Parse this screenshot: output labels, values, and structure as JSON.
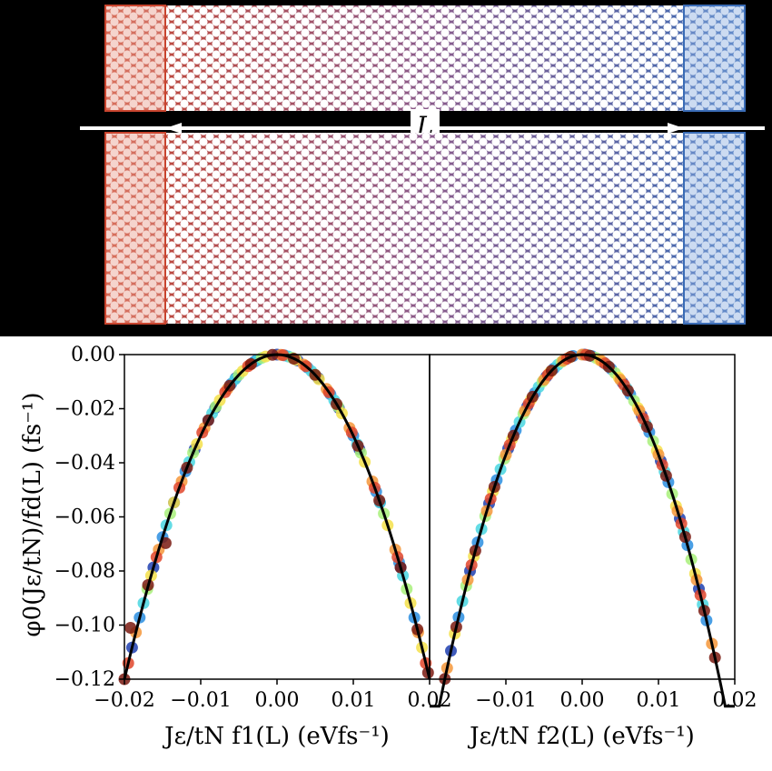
{
  "schematic": {
    "length_label": "L",
    "colors": {
      "hot": "#c8442e",
      "cold": "#3a6cb6",
      "mid": "#8a5a8a",
      "background": "#000000"
    }
  },
  "chart_data": [
    {
      "type": "scatter",
      "panel": "left",
      "ylabel": "φ0(Jε/tN)/fd(L) (fs⁻¹)",
      "xlabel": "Jε/tN f1(L) (eVfs⁻¹)",
      "xlim": [
        -0.02,
        0.02
      ],
      "ylim": [
        -0.12,
        0.0
      ],
      "xticks": [
        "−0.02",
        "−0.01",
        "0.00",
        "0.01",
        "0.02"
      ],
      "yticks": [
        "0.00",
        "−0.02",
        "−0.04",
        "−0.06",
        "−0.08",
        "−0.10",
        "−0.12"
      ],
      "curve": {
        "type": "parabola",
        "a": -300,
        "label": ""
      },
      "series": [
        {
          "color": "#1f3fb0",
          "points": [
            [
              -0.019,
              -0.1083
            ],
            [
              -0.0162,
              -0.0787
            ],
            [
              -0.0135,
              -0.0547
            ],
            [
              -0.0108,
              -0.035
            ],
            [
              -0.0081,
              -0.0197
            ],
            [
              -0.0054,
              -0.0087
            ],
            [
              -0.0027,
              -0.0022
            ],
            [
              0.0,
              0.0
            ],
            [
              0.0027,
              -0.0022
            ],
            [
              0.0054,
              -0.0087
            ],
            [
              0.0081,
              -0.0197
            ],
            [
              0.0108,
              -0.035
            ],
            [
              0.0135,
              -0.0547
            ],
            [
              0.0162,
              -0.0787
            ]
          ]
        },
        {
          "color": "#2a8ee0",
          "points": [
            [
              -0.018,
              -0.0972
            ],
            [
              -0.015,
              -0.0675
            ],
            [
              -0.012,
              -0.0432
            ],
            [
              -0.009,
              -0.0243
            ],
            [
              -0.006,
              -0.0108
            ],
            [
              -0.003,
              -0.0027
            ],
            [
              0.001,
              -0.0003
            ],
            [
              0.004,
              -0.0048
            ],
            [
              0.007,
              -0.0147
            ],
            [
              0.01,
              -0.03
            ],
            [
              0.013,
              -0.0507
            ],
            [
              0.016,
              -0.0768
            ],
            [
              0.018,
              -0.0972
            ]
          ]
        },
        {
          "color": "#49d6e0",
          "points": [
            [
              -0.0175,
              -0.0919
            ],
            [
              -0.0145,
              -0.0631
            ],
            [
              -0.0115,
              -0.0397
            ],
            [
              -0.0085,
              -0.0217
            ],
            [
              -0.0055,
              -0.0091
            ],
            [
              -0.0025,
              -0.0019
            ],
            [
              0.0015,
              -0.0007
            ],
            [
              0.0045,
              -0.0061
            ],
            [
              0.0075,
              -0.0169
            ],
            [
              0.0105,
              -0.0331
            ],
            [
              0.0135,
              -0.0547
            ],
            [
              0.0165,
              -0.0817
            ]
          ]
        },
        {
          "color": "#a8f07a",
          "points": [
            [
              -0.017,
              -0.0867
            ],
            [
              -0.014,
              -0.0588
            ],
            [
              -0.011,
              -0.0363
            ],
            [
              -0.008,
              -0.0192
            ],
            [
              -0.005,
              -0.0075
            ],
            [
              -0.002,
              -0.0012
            ],
            [
              0.002,
              -0.0012
            ],
            [
              0.005,
              -0.0075
            ],
            [
              0.008,
              -0.0192
            ],
            [
              0.011,
              -0.0363
            ],
            [
              0.014,
              -0.0588
            ],
            [
              0.017,
              -0.0867
            ]
          ]
        },
        {
          "color": "#f5e04a",
          "points": [
            [
              -0.0165,
              -0.0817
            ],
            [
              -0.0135,
              -0.0547
            ],
            [
              -0.0105,
              -0.0331
            ],
            [
              -0.0075,
              -0.0169
            ],
            [
              -0.0045,
              -0.0061
            ],
            [
              -0.0015,
              -0.0007
            ],
            [
              0.0025,
              -0.0019
            ],
            [
              0.0055,
              -0.0091
            ],
            [
              0.0085,
              -0.0217
            ],
            [
              0.0115,
              -0.0397
            ],
            [
              0.0145,
              -0.0631
            ],
            [
              0.0175,
              -0.0919
            ],
            [
              0.019,
              -0.1083
            ]
          ]
        },
        {
          "color": "#f5963a",
          "points": [
            [
              -0.0185,
              -0.1027
            ],
            [
              -0.0155,
              -0.0721
            ],
            [
              -0.0125,
              -0.0469
            ],
            [
              -0.0095,
              -0.0271
            ],
            [
              -0.0065,
              -0.0127
            ],
            [
              -0.0035,
              -0.0037
            ],
            [
              0.0005,
              -0.0001
            ],
            [
              0.0035,
              -0.0037
            ],
            [
              0.0065,
              -0.0127
            ],
            [
              0.0095,
              -0.0271
            ],
            [
              0.0125,
              -0.0469
            ],
            [
              0.0155,
              -0.0721
            ],
            [
              0.0185,
              -0.1027
            ]
          ]
        },
        {
          "color": "#e0452a",
          "points": [
            [
              -0.0195,
              -0.1141
            ],
            [
              -0.0158,
              -0.0749
            ],
            [
              -0.0128,
              -0.0492
            ],
            [
              -0.0098,
              -0.0288
            ],
            [
              -0.0068,
              -0.0139
            ],
            [
              -0.0038,
              -0.0043
            ],
            [
              0.0008,
              -0.0002
            ],
            [
              0.0038,
              -0.0043
            ],
            [
              0.0068,
              -0.0139
            ],
            [
              0.0098,
              -0.0288
            ],
            [
              0.0128,
              -0.0492
            ],
            [
              0.0158,
              -0.0749
            ],
            [
              0.0195,
              -0.1141
            ]
          ]
        },
        {
          "color": "#7a1a10",
          "points": [
            [
              -0.02,
              -0.12
            ],
            [
              -0.0192,
              -0.101
            ],
            [
              -0.0169,
              -0.0852
            ],
            [
              -0.0146,
              -0.0697
            ],
            [
              -0.0118,
              -0.0418
            ],
            [
              -0.009,
              -0.0243
            ],
            [
              -0.0062,
              -0.0115
            ],
            [
              -0.0034,
              -0.0035
            ],
            [
              -0.0006,
              -0.0001
            ],
            [
              0.0022,
              -0.0015
            ],
            [
              0.005,
              -0.0075
            ],
            [
              0.0078,
              -0.0183
            ],
            [
              0.0106,
              -0.0337
            ],
            [
              0.0134,
              -0.0539
            ],
            [
              0.0162,
              -0.0787
            ],
            [
              0.0184,
              -0.1016
            ],
            [
              0.0198,
              -0.1176
            ]
          ]
        }
      ]
    },
    {
      "type": "scatter",
      "panel": "right",
      "xlabel": "Jε/tN f2(L) (eVfs⁻¹)",
      "xlim": [
        -0.02,
        0.02
      ],
      "ylim": [
        -0.12,
        0.0
      ],
      "xticks": [
        "−0.01",
        "0.00",
        "0.01",
        "0.02"
      ],
      "curve": {
        "type": "parabola",
        "a": -370,
        "label": ""
      },
      "series": [
        {
          "color": "#1f3fb0",
          "points": [
            [
              -0.0172,
              -0.1095
            ],
            [
              -0.0147,
              -0.08
            ],
            [
              -0.0122,
              -0.0551
            ],
            [
              -0.0097,
              -0.0348
            ],
            [
              -0.0072,
              -0.0192
            ],
            [
              -0.0047,
              -0.0082
            ],
            [
              -0.0022,
              -0.0018
            ],
            [
              0.0003,
              0.0
            ],
            [
              0.0028,
              -0.0029
            ],
            [
              0.0053,
              -0.0104
            ],
            [
              0.0078,
              -0.0225
            ],
            [
              0.0103,
              -0.0393
            ],
            [
              0.0128,
              -0.0606
            ],
            [
              0.0153,
              -0.0866
            ]
          ]
        },
        {
          "color": "#2a8ee0",
          "points": [
            [
              -0.0162,
              -0.0971
            ],
            [
              -0.0137,
              -0.0694
            ],
            [
              -0.0112,
              -0.0464
            ],
            [
              -0.0087,
              -0.028
            ],
            [
              -0.0062,
              -0.0142
            ],
            [
              -0.0037,
              -0.0051
            ],
            [
              -0.0012,
              -0.0005
            ],
            [
              0.0013,
              -0.0006
            ],
            [
              0.0038,
              -0.0053
            ],
            [
              0.0063,
              -0.0147
            ],
            [
              0.0088,
              -0.0287
            ],
            [
              0.0113,
              -0.0472
            ],
            [
              0.0138,
              -0.0705
            ],
            [
              0.0163,
              -0.0983
            ]
          ]
        },
        {
          "color": "#49d6e0",
          "points": [
            [
              -0.0157,
              -0.0912
            ],
            [
              -0.0132,
              -0.0645
            ],
            [
              -0.0107,
              -0.0424
            ],
            [
              -0.0082,
              -0.0249
            ],
            [
              -0.0057,
              -0.012
            ],
            [
              -0.0032,
              -0.0038
            ],
            [
              0.0008,
              -0.0002
            ],
            [
              0.0033,
              -0.004
            ],
            [
              0.0058,
              -0.0124
            ],
            [
              0.0083,
              -0.0255
            ],
            [
              0.0108,
              -0.0432
            ],
            [
              0.0133,
              -0.0655
            ],
            [
              0.0158,
              -0.0924
            ]
          ]
        },
        {
          "color": "#a8f07a",
          "points": [
            [
              -0.0152,
              -0.0855
            ],
            [
              -0.0127,
              -0.0597
            ],
            [
              -0.0102,
              -0.0385
            ],
            [
              -0.0077,
              -0.0219
            ],
            [
              -0.0052,
              -0.01
            ],
            [
              -0.0027,
              -0.0027
            ],
            [
              0.0018,
              -0.0012
            ],
            [
              0.0043,
              -0.0068
            ],
            [
              0.0068,
              -0.0171
            ],
            [
              0.0093,
              -0.032
            ],
            [
              0.0118,
              -0.0515
            ],
            [
              0.0143,
              -0.0757
            ]
          ]
        },
        {
          "color": "#f5e04a",
          "points": [
            [
              -0.0167,
              -0.1032
            ],
            [
              -0.0142,
              -0.0746
            ],
            [
              -0.0117,
              -0.0506
            ],
            [
              -0.0092,
              -0.0313
            ],
            [
              -0.0067,
              -0.0166
            ],
            [
              -0.0042,
              -0.0065
            ],
            [
              -0.0017,
              -0.0011
            ],
            [
              0.0023,
              -0.002
            ],
            [
              0.0048,
              -0.0085
            ],
            [
              0.0073,
              -0.0197
            ],
            [
              0.0098,
              -0.0355
            ],
            [
              0.0123,
              -0.056
            ],
            [
              0.0148,
              -0.081
            ]
          ]
        },
        {
          "color": "#f5963a",
          "points": [
            [
              -0.0177,
              -0.1159
            ],
            [
              -0.015,
              -0.0833
            ],
            [
              -0.0125,
              -0.0578
            ],
            [
              -0.01,
              -0.037
            ],
            [
              -0.0075,
              -0.0208
            ],
            [
              -0.005,
              -0.0093
            ],
            [
              -0.0025,
              -0.0023
            ],
            [
              0.0,
              0.0
            ],
            [
              0.0025,
              -0.0023
            ],
            [
              0.005,
              -0.0093
            ],
            [
              0.0075,
              -0.0208
            ],
            [
              0.01,
              -0.037
            ],
            [
              0.0125,
              -0.0578
            ],
            [
              0.015,
              -0.0833
            ],
            [
              0.017,
              -0.1069
            ]
          ]
        },
        {
          "color": "#e0452a",
          "points": [
            [
              -0.0145,
              -0.0778
            ],
            [
              -0.012,
              -0.0533
            ],
            [
              -0.0095,
              -0.0334
            ],
            [
              -0.007,
              -0.0181
            ],
            [
              -0.0045,
              -0.0075
            ],
            [
              -0.002,
              -0.0015
            ],
            [
              0.0005,
              -0.0001
            ],
            [
              0.003,
              -0.0033
            ],
            [
              0.0055,
              -0.0112
            ],
            [
              0.008,
              -0.0237
            ],
            [
              0.0105,
              -0.0408
            ],
            [
              0.013,
              -0.0625
            ],
            [
              0.0155,
              -0.0889
            ]
          ]
        },
        {
          "color": "#7a1a10",
          "points": [
            [
              -0.018,
              -0.1199
            ],
            [
              -0.0165,
              -0.1007
            ],
            [
              -0.014,
              -0.0725
            ],
            [
              -0.0115,
              -0.0489
            ],
            [
              -0.009,
              -0.03
            ],
            [
              -0.0065,
              -0.0156
            ],
            [
              -0.004,
              -0.0059
            ],
            [
              -0.0015,
              -0.0008
            ],
            [
              0.001,
              -0.0004
            ],
            [
              0.0035,
              -0.0045
            ],
            [
              0.006,
              -0.0133
            ],
            [
              0.0085,
              -0.0267
            ],
            [
              0.011,
              -0.0448
            ],
            [
              0.0135,
              -0.0674
            ],
            [
              0.016,
              -0.0947
            ],
            [
              0.0174,
              -0.112
            ]
          ]
        }
      ]
    }
  ]
}
